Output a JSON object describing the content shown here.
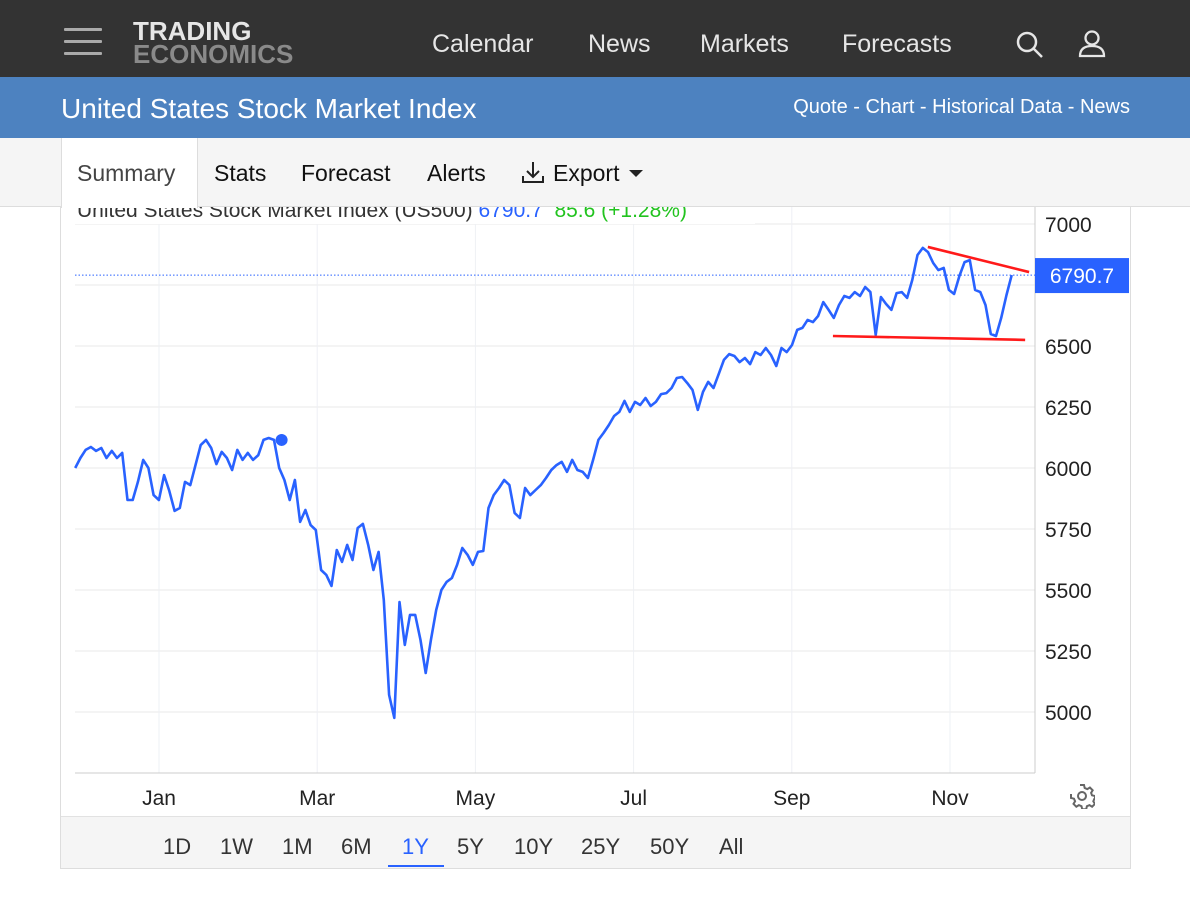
{
  "header": {
    "logo_top": "TRADING",
    "logo_bottom": "ECONOMICS",
    "nav": [
      "Calendar",
      "News",
      "Markets",
      "Forecasts"
    ],
    "icons": [
      "menu-icon",
      "search-icon",
      "user-icon"
    ]
  },
  "title_bar": {
    "title": "United States Stock Market Index",
    "links": [
      "Quote",
      "Chart",
      "Historical Data",
      "News"
    ],
    "separator": " - "
  },
  "tabs": [
    "Summary",
    "Stats",
    "Forecast",
    "Alerts",
    "Export"
  ],
  "ranges": [
    "1D",
    "1W",
    "1M",
    "6M",
    "1Y",
    "5Y",
    "10Y",
    "25Y",
    "50Y",
    "All"
  ],
  "active_range": "1Y",
  "colors": {
    "line": "#2962ff",
    "trend": "#ff1a1a",
    "up": "#22c31f",
    "header": "#333333",
    "bluebar": "#4d82c0"
  },
  "chart_data": {
    "type": "line",
    "legend": {
      "name": "United States Stock Market Index (US500)",
      "last": "6790.7",
      "change": "85.6 (+1.28%)"
    },
    "last_label": "6790.7",
    "last_value": 6790.7,
    "xlabels": [
      "Jan",
      "Mar",
      "May",
      "Jul",
      "Sep",
      "Nov"
    ],
    "xlabel_months": [
      0,
      2,
      4,
      6,
      8,
      10
    ],
    "xlim_months": [
      -1.06,
      11.07
    ],
    "data_x_range_months": [
      -1.06,
      10.78
    ],
    "ylim": [
      4750,
      7050
    ],
    "yticks": [
      5000,
      5250,
      5500,
      5750,
      6000,
      6250,
      6500,
      6750,
      7000
    ],
    "ytick_labels": [
      "5000",
      "5250",
      "5500",
      "",
      "6000",
      "6250",
      "6500",
      "",
      "7000"
    ],
    "ytick_labels_full": {
      "5750": "5750"
    },
    "grid": true,
    "marker": {
      "month": 1.55,
      "value": 6115
    },
    "trendlines": [
      {
        "from": [
          9.72,
          6906
        ],
        "to": [
          11.0,
          6803
        ]
      },
      {
        "from": [
          8.52,
          6541
        ],
        "to": [
          10.95,
          6525
        ]
      }
    ],
    "values": [
      6000,
      6041,
      6074,
      6086,
      6070,
      6082,
      6041,
      6070,
      6041,
      6062,
      5869,
      5869,
      5943,
      6033,
      6000,
      5889,
      5869,
      5971,
      5906,
      5824,
      5836,
      5943,
      5930,
      6012,
      6094,
      6115,
      6082,
      6016,
      6066,
      6041,
      5992,
      6074,
      6033,
      6062,
      6033,
      6053,
      6115,
      6123,
      6115,
      6000,
      5951,
      5869,
      5951,
      5779,
      5828,
      5766,
      5746,
      5582,
      5562,
      5517,
      5664,
      5615,
      5685,
      5623,
      5754,
      5771,
      5685,
      5582,
      5656,
      5459,
      5070,
      4976,
      5451,
      5275,
      5398,
      5398,
      5295,
      5160,
      5295,
      5418,
      5500,
      5533,
      5549,
      5603,
      5672,
      5644,
      5603,
      5656,
      5660,
      5836,
      5889,
      5918,
      5951,
      5930,
      5816,
      5795,
      5918,
      5889,
      5910,
      5930,
      5959,
      5992,
      6012,
      6025,
      5984,
      6033,
      5992,
      5984,
      5959,
      6033,
      6115,
      6144,
      6176,
      6213,
      6230,
      6275,
      6230,
      6271,
      6258,
      6287,
      6254,
      6271,
      6303,
      6307,
      6328,
      6369,
      6373,
      6348,
      6320,
      6238,
      6312,
      6353,
      6328,
      6385,
      6443,
      6467,
      6459,
      6434,
      6451,
      6426,
      6475,
      6463,
      6492,
      6463,
      6418,
      6492,
      6475,
      6504,
      6566,
      6574,
      6607,
      6598,
      6623,
      6680,
      6648,
      6615,
      6668,
      6705,
      6697,
      6721,
      6705,
      6742,
      6721,
      6545,
      6701,
      6672,
      6648,
      6717,
      6721,
      6697,
      6771,
      6873,
      6902,
      6885,
      6840,
      6811,
      6820,
      6730,
      6713,
      6787,
      6844,
      6852,
      6730,
      6721,
      6668,
      6549,
      6541,
      6615,
      6709,
      6790.7
    ]
  }
}
